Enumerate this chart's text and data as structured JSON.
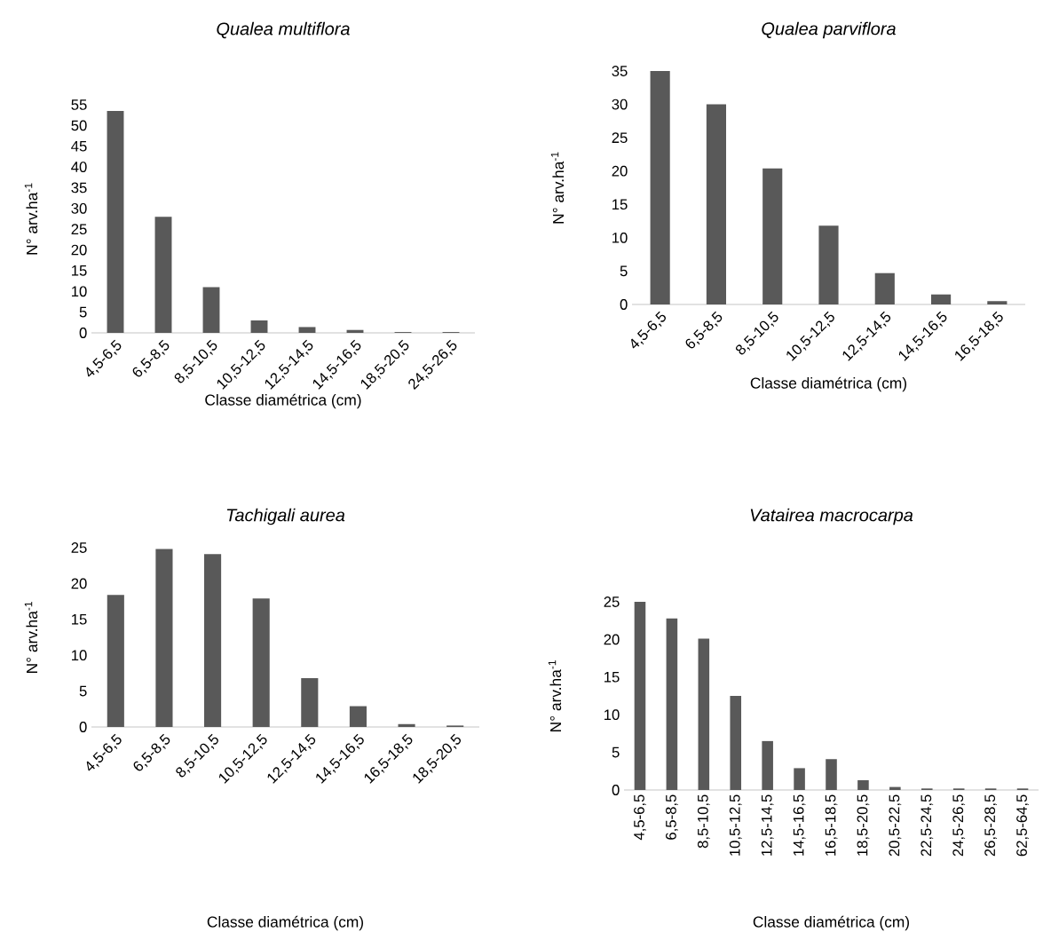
{
  "chart_data": [
    {
      "type": "bar",
      "title": "Qualea multiflora",
      "xlabel": "Classe diamétrica (cm)",
      "ylabel": "N° arv.ha$^{-1}$",
      "categories": [
        "4,5-6,5",
        "6,5-8,5",
        "8,5-10,5",
        "10,5-12,5",
        "12,5-14,5",
        "14,5-16,5",
        "18,5-20,5",
        "24,5-26,5"
      ],
      "values": [
        53.5,
        28,
        11,
        3,
        1.4,
        0.7,
        0.2,
        0.2
      ],
      "color": "#595959",
      "ylim": [
        0,
        55
      ],
      "yticks": [
        0,
        5,
        10,
        15,
        20,
        25,
        30,
        35,
        40,
        45,
        50,
        55
      ]
    },
    {
      "type": "bar",
      "title": "Qualea parviflora",
      "xlabel": "Classe diamétrica (cm)",
      "ylabel": "N° arv.ha$^{-1}$",
      "categories": [
        "4,5-6,5",
        "6,5-8,5",
        "8,5-10,5",
        "10,5-12,5",
        "12,5-14,5",
        "14,5-16,5",
        "16,5-18,5"
      ],
      "values": [
        35,
        30,
        20.4,
        11.8,
        4.7,
        1.5,
        0.5
      ],
      "color": "#595959",
      "ylim": [
        0,
        35
      ],
      "yticks": [
        0,
        5,
        10,
        15,
        20,
        25,
        30,
        35
      ]
    },
    {
      "type": "bar",
      "title": "Tachigali aurea",
      "xlabel": "Classe diamétrica (cm)",
      "ylabel": "N° arv.ha$^{-1}$",
      "categories": [
        "4,5-6,5",
        "6,5-8,5",
        "8,5-10,5",
        "10,5-12,5",
        "12,5-14,5",
        "14,5-16,5",
        "16,5-18,5",
        "18,5-20,5"
      ],
      "values": [
        18.4,
        24.8,
        24.1,
        17.9,
        6.8,
        2.9,
        0.4,
        0.2
      ],
      "color": "#595959",
      "ylim": [
        0,
        25
      ],
      "yticks": [
        0,
        5,
        10,
        15,
        20,
        25
      ]
    },
    {
      "type": "bar",
      "title": "Vatairea macrocarpa",
      "xlabel": "Classe diamétrica (cm)",
      "ylabel": "N° arv.ha$^{-1}$",
      "categories": [
        "4,5-6,5",
        "6,5-8,5",
        "8,5-10,5",
        "10,5-12,5",
        "12,5-14,5",
        "14,5-16,5",
        "16,5-18,5",
        "18,5-20,5",
        "20,5-22,5",
        "22,5-24,5",
        "24,5-26,5",
        "26,5-28,5",
        "62,5-64,5"
      ],
      "values": [
        25,
        22.8,
        20.1,
        12.5,
        6.5,
        2.9,
        4.1,
        1.3,
        0.4,
        0.2,
        0.2,
        0.2,
        0.2
      ],
      "color": "#595959",
      "ylim": [
        0,
        25
      ],
      "yticks": [
        0,
        5,
        10,
        15,
        20,
        25
      ]
    }
  ]
}
